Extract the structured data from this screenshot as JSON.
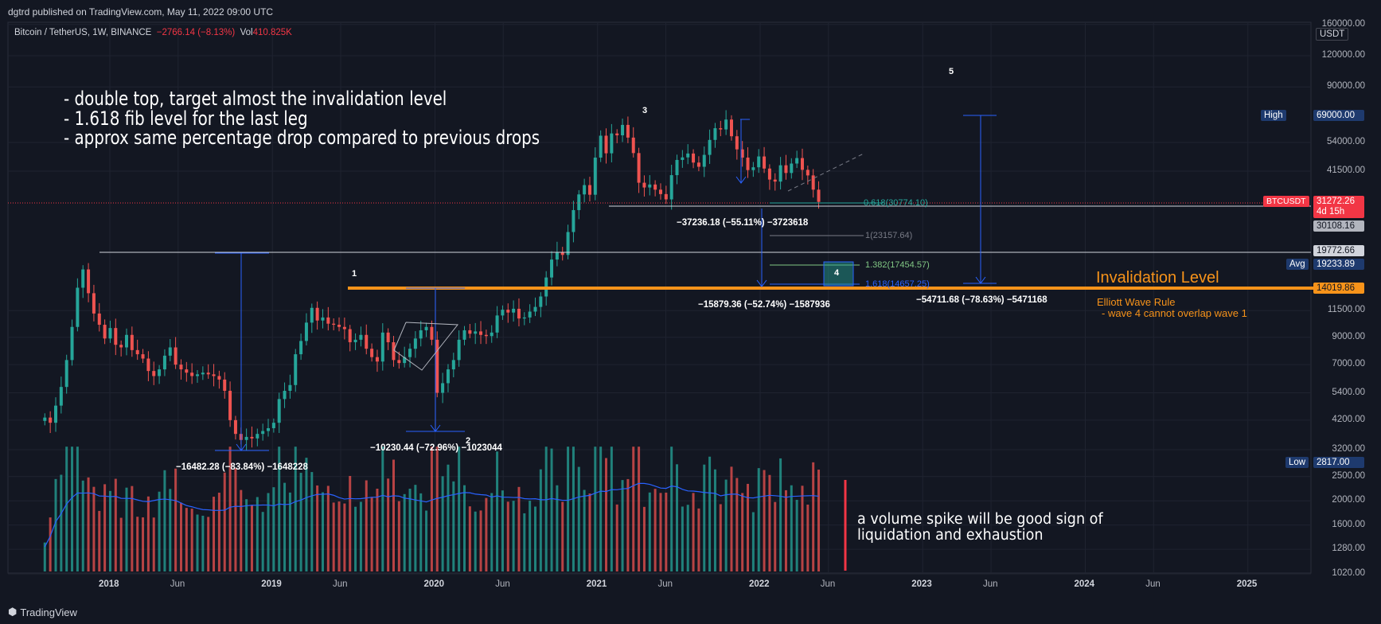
{
  "publish_line": "dgtrd published on TradingView.com, May 11, 2022 09:00 UTC",
  "symbol": {
    "name": "Bitcoin / TetherUS, 1W, BINANCE",
    "change": "−2766.14 (−8.13%)",
    "vol_label": "Vol",
    "vol_value": "410.825K"
  },
  "notes": [
    "- double top, target almost the invalidation level",
    "- 1.618 fib level for the last leg",
    "- approx same percentage drop compared to previous drops"
  ],
  "volume_note": [
    "a volume spike will be good sign of",
    "liquidation and exhaustion"
  ],
  "invalidation": {
    "title": "Invalidation Level",
    "rule_title": "Elliott Wave Rule",
    "rule_text": "- wave 4 cannot overlap wave 1",
    "color": "#f7931a"
  },
  "waves": [
    "1",
    "2",
    "3",
    "4",
    "5"
  ],
  "measurements": [
    "−16482.28 (−83.84%) −1648228",
    "−10230.44 (−72.96%) −1023044",
    "−37236.18 (−55.11%) −3723618",
    "−15879.36 (−52.74%) −1587936",
    "−54711.68 (−78.63%) −5471168"
  ],
  "fib_levels": [
    "0.618(30774.10)",
    "1(23157.64)",
    "1.382(17454.57)",
    "1.618(14657.25)"
  ],
  "currency": "USDT",
  "footer_brand": "TradingView",
  "colors": {
    "background": "#131722",
    "up": "#26a69a",
    "down": "#ef5350",
    "blue": "#2962ff",
    "orange": "#f7931a",
    "red_marker": "#f23645"
  },
  "tags": {
    "high": {
      "label": "High",
      "value": "69000.00"
    },
    "last": {
      "label": "BTCUSDT",
      "value": "31272.26",
      "countdown": "4d 15h"
    },
    "level1": {
      "value": "30108.16"
    },
    "level2": {
      "value": "19772.66"
    },
    "avg": {
      "label": "Avg",
      "value": "19233.89"
    },
    "inval": {
      "value": "14019.86"
    },
    "low": {
      "label": "Low",
      "value": "2817.00"
    }
  },
  "chart_data": {
    "type": "candlestick",
    "title": "Bitcoin / TetherUS, 1W, BINANCE",
    "price_scale": "log",
    "price_ticks": [
      "160000.00",
      "120000.00",
      "90000.00",
      "69000.00",
      "54000.00",
      "41500.00",
      "31272.26",
      "30108.16",
      "19772.66",
      "19233.89",
      "14019.86",
      "11500.00",
      "9000.00",
      "7000.00",
      "5400.00",
      "4200.00",
      "3200.00",
      "2817.00",
      "2500.00",
      "2000.00",
      "1600.00",
      "1280.00",
      "1020.00"
    ],
    "price_tick_values": [
      160000,
      120000,
      90000,
      54000,
      41500,
      11500,
      9000,
      7000,
      5400,
      4200,
      3200,
      2500,
      2000,
      1600,
      1280,
      1020
    ],
    "time_ticks": [
      "2018",
      "Jun",
      "2019",
      "Jun",
      "2020",
      "Jun",
      "2021",
      "Jun",
      "2022",
      "Jun",
      "2023",
      "Jun",
      "2024",
      "Jun",
      "2025"
    ],
    "time_tick_values": [
      2018.0,
      2018.42,
      2019.0,
      2019.42,
      2020.0,
      2020.42,
      2021.0,
      2021.42,
      2022.0,
      2022.42,
      2023.0,
      2023.42,
      2024.0,
      2024.42,
      2025.0
    ],
    "weekly_closes": [
      4300,
      4100,
      4800,
      5700,
      7300,
      9900,
      14200,
      16800,
      13500,
      11200,
      10100,
      8900,
      9800,
      8400,
      8200,
      9200,
      8000,
      7700,
      7400,
      6600,
      6300,
      6700,
      7600,
      8200,
      7000,
      6700,
      6500,
      6300,
      6400,
      6500,
      6400,
      6300,
      6100,
      5500,
      4200,
      3700,
      3500,
      3600,
      3550,
      3700,
      3800,
      3900,
      4100,
      5100,
      5500,
      5800,
      7700,
      8700,
      10300,
      11800,
      10500,
      10800,
      10200,
      10100,
      9900,
      9700,
      8600,
      8800,
      9200,
      8100,
      7500,
      7200,
      9400,
      8600,
      7300,
      7100,
      7500,
      8100,
      8900,
      9600,
      9900,
      8800,
      5400,
      5900,
      6700,
      7300,
      8800,
      9600,
      9300,
      9500,
      9200,
      9100,
      9400,
      11000,
      11600,
      11300,
      11700,
      10700,
      10800,
      11400,
      11900,
      13100,
      15600,
      18400,
      19700,
      19200,
      23700,
      29000,
      33500,
      36500,
      33400,
      47000,
      57500,
      48900,
      58700,
      57700,
      63500,
      56500,
      49000,
      37300,
      35700,
      36700,
      35000,
      33600,
      32000,
      40000,
      46000,
      47100,
      48800,
      44900,
      43200,
      48200,
      55300,
      61600,
      60900,
      66700,
      57200,
      50700,
      47000,
      41900,
      43000,
      47500,
      42500,
      38400,
      37700,
      43800,
      40800,
      44500,
      46800,
      42000,
      39900,
      35000,
      31272
    ]
  }
}
